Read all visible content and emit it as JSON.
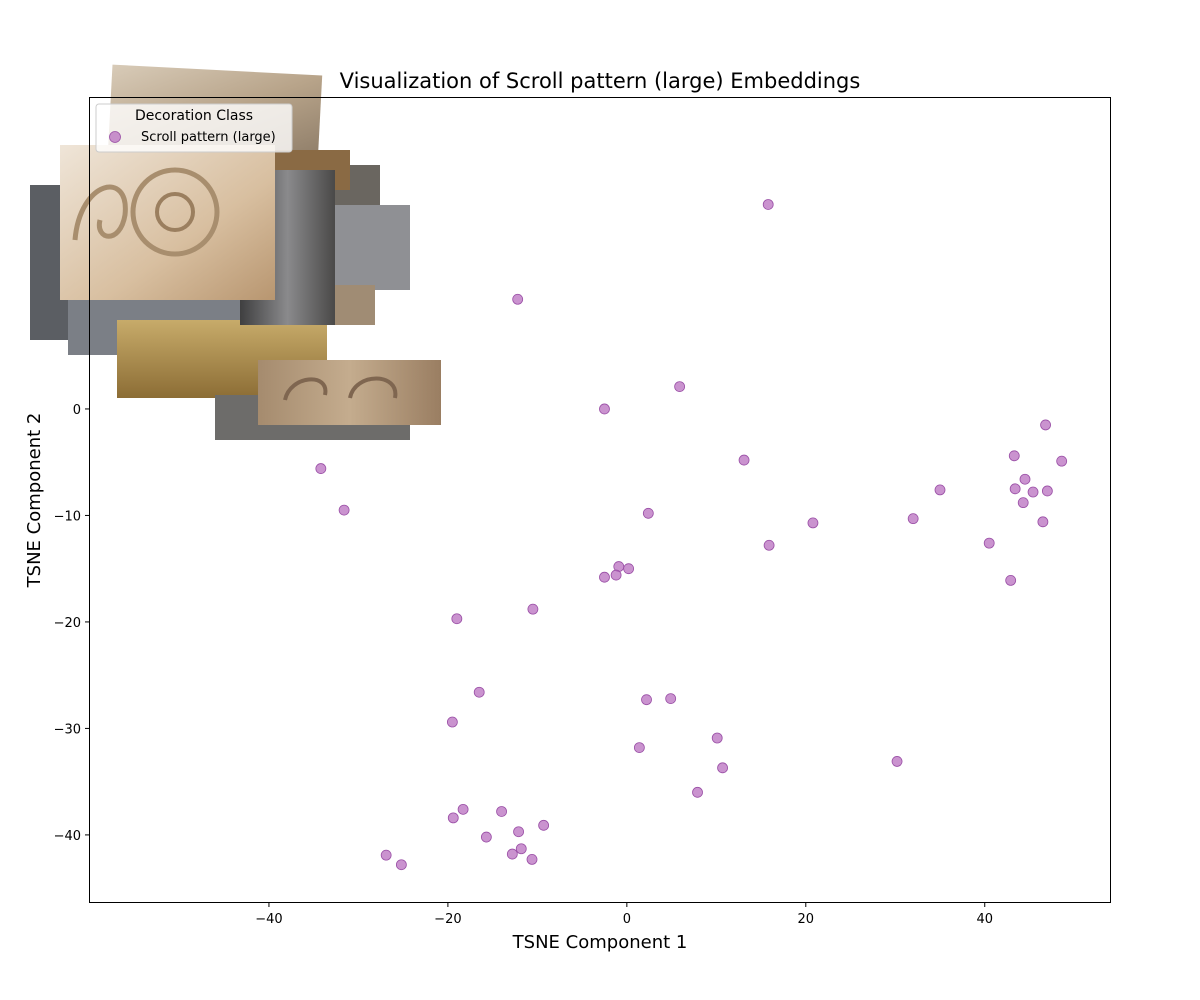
{
  "chart_data": {
    "type": "scatter",
    "title": "Visualization of Scroll pattern (large) Embeddings",
    "xlabel": "TSNE Component 1",
    "ylabel": "TSNE Component 2",
    "xlim": [
      -60,
      54
    ],
    "ylim": [
      -46.3,
      29.2
    ],
    "xticks": [
      -40,
      -20,
      0,
      20,
      40
    ],
    "yticks": [
      -40,
      -30,
      -20,
      -10,
      0
    ],
    "grid": false,
    "legend": {
      "title": "Decoration Class",
      "placement": "top-left",
      "entries": [
        "Scroll pattern (large)"
      ]
    },
    "series": [
      {
        "name": "Scroll pattern (large)",
        "color": "#b86fbf",
        "points": [
          [
            15.8,
            19.2
          ],
          [
            -12.2,
            10.3
          ],
          [
            5.9,
            2.1
          ],
          [
            -2.5,
            0.0
          ],
          [
            46.8,
            -1.5
          ],
          [
            48.6,
            -4.9
          ],
          [
            43.3,
            -4.4
          ],
          [
            44.5,
            -6.6
          ],
          [
            43.4,
            -7.5
          ],
          [
            45.4,
            -7.8
          ],
          [
            47.0,
            -7.7
          ],
          [
            44.3,
            -8.8
          ],
          [
            46.5,
            -10.6
          ],
          [
            35.0,
            -7.6
          ],
          [
            32.0,
            -10.3
          ],
          [
            40.5,
            -12.6
          ],
          [
            42.9,
            -16.1
          ],
          [
            13.1,
            -4.8
          ],
          [
            20.8,
            -10.7
          ],
          [
            15.9,
            -12.8
          ],
          [
            2.4,
            -9.8
          ],
          [
            -34.2,
            -5.6
          ],
          [
            -31.6,
            -9.5
          ],
          [
            -0.9,
            -14.8
          ],
          [
            0.2,
            -15.0
          ],
          [
            -1.2,
            -15.6
          ],
          [
            -2.5,
            -15.8
          ],
          [
            -10.5,
            -18.8
          ],
          [
            -19.0,
            -19.7
          ],
          [
            -16.5,
            -26.6
          ],
          [
            -19.5,
            -29.4
          ],
          [
            2.2,
            -27.3
          ],
          [
            4.9,
            -27.2
          ],
          [
            1.4,
            -31.8
          ],
          [
            10.1,
            -30.9
          ],
          [
            10.7,
            -33.7
          ],
          [
            30.2,
            -33.1
          ],
          [
            7.9,
            -36.0
          ],
          [
            -14.0,
            -37.8
          ],
          [
            -18.3,
            -37.6
          ],
          [
            -19.4,
            -38.4
          ],
          [
            -9.3,
            -39.1
          ],
          [
            -12.1,
            -39.7
          ],
          [
            -15.7,
            -40.2
          ],
          [
            -11.8,
            -41.3
          ],
          [
            -12.8,
            -41.8
          ],
          [
            -10.6,
            -42.3
          ],
          [
            -26.9,
            -41.9
          ],
          [
            -25.2,
            -42.8
          ]
        ]
      }
    ]
  }
}
